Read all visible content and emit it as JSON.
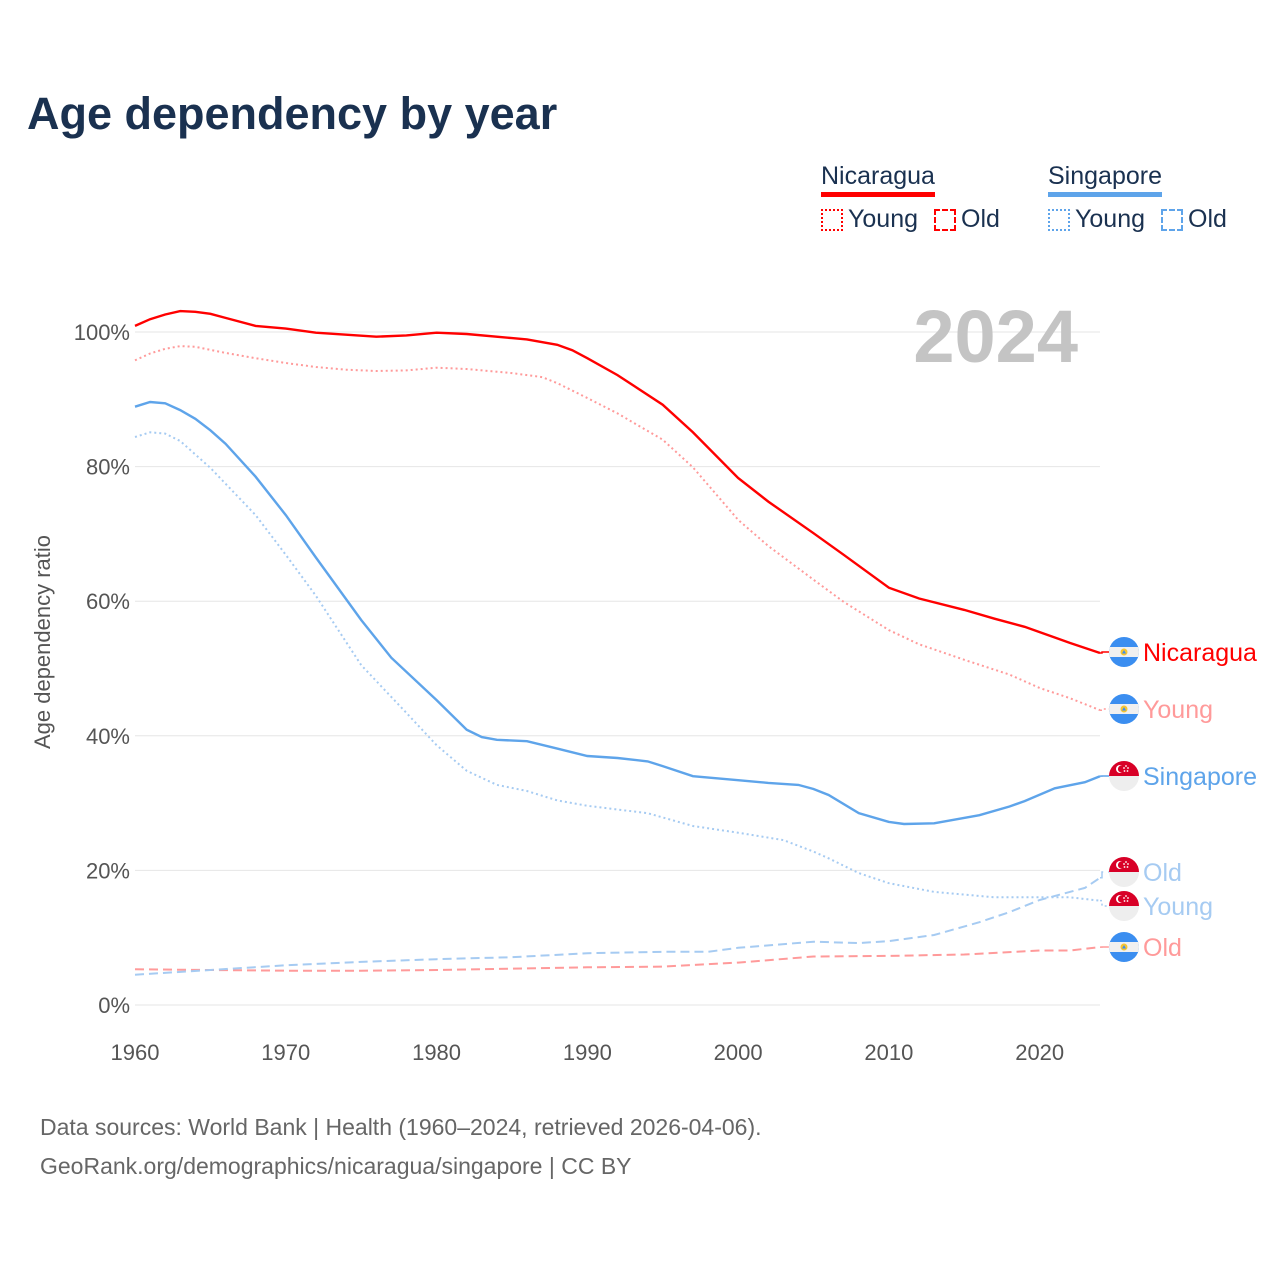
{
  "title": "Age dependency by year",
  "legend": {
    "countries": [
      {
        "name": "Nicaragua",
        "color": "#ff0000",
        "light": "#ff9a9a"
      },
      {
        "name": "Singapore",
        "color": "#5ea4ea",
        "light": "#a6cbf2"
      }
    ],
    "young_label": "Young",
    "old_label": "Old"
  },
  "source_line1": "Data sources: World Bank | Health (1960–2024, retrieved 2026-04-06).",
  "source_line2": "GeoRank.org/demographics/nicaragua/singapore | CC BY",
  "chart_data": {
    "type": "line",
    "title": "Age dependency by year",
    "year_watermark": "2024",
    "xlabel": "",
    "ylabel": "Age dependency ratio",
    "xlim": [
      1960,
      2024
    ],
    "ylim": [
      0,
      100
    ],
    "x_ticks": [
      "1960",
      "1970",
      "1980",
      "1990",
      "2000",
      "2010",
      "2020"
    ],
    "y_ticks": [
      "0%",
      "20%",
      "40%",
      "60%",
      "80%",
      "100%"
    ],
    "grid": true,
    "series": [
      {
        "name": "Nicaragua",
        "end_label": "Nicaragua",
        "style": "solid",
        "color": "#ff0000",
        "points": [
          [
            1960,
            100.9
          ],
          [
            1961,
            101.9
          ],
          [
            1962,
            102.6
          ],
          [
            1963,
            103.1
          ],
          [
            1964,
            103.0
          ],
          [
            1965,
            102.7
          ],
          [
            1966,
            102.1
          ],
          [
            1968,
            100.9
          ],
          [
            1970,
            100.5
          ],
          [
            1972,
            99.9
          ],
          [
            1974,
            99.6
          ],
          [
            1976,
            99.3
          ],
          [
            1978,
            99.5
          ],
          [
            1980,
            99.9
          ],
          [
            1982,
            99.7
          ],
          [
            1985,
            99.1
          ],
          [
            1986,
            98.9
          ],
          [
            1988,
            98.1
          ],
          [
            1989,
            97.3
          ],
          [
            1990,
            96.1
          ],
          [
            1992,
            93.6
          ],
          [
            1995,
            89.2
          ],
          [
            1997,
            85.1
          ],
          [
            2000,
            78.3
          ],
          [
            2002,
            74.8
          ],
          [
            2005,
            70.1
          ],
          [
            2007,
            66.9
          ],
          [
            2010,
            62.0
          ],
          [
            2012,
            60.4
          ],
          [
            2015,
            58.7
          ],
          [
            2017,
            57.4
          ],
          [
            2019,
            56.2
          ],
          [
            2021,
            54.6
          ],
          [
            2022,
            53.8
          ],
          [
            2024,
            52.3
          ]
        ]
      },
      {
        "name": "Nicaragua Young",
        "end_label": "Young",
        "style": "dotted",
        "color": "#ff9a9a",
        "points": [
          [
            1960,
            95.8
          ],
          [
            1961,
            96.8
          ],
          [
            1962,
            97.5
          ],
          [
            1963,
            97.9
          ],
          [
            1964,
            97.8
          ],
          [
            1966,
            96.9
          ],
          [
            1968,
            96.1
          ],
          [
            1970,
            95.4
          ],
          [
            1972,
            94.8
          ],
          [
            1974,
            94.4
          ],
          [
            1976,
            94.2
          ],
          [
            1978,
            94.3
          ],
          [
            1980,
            94.7
          ],
          [
            1982,
            94.5
          ],
          [
            1985,
            93.9
          ],
          [
            1987,
            93.3
          ],
          [
            1988,
            92.4
          ],
          [
            1990,
            90.2
          ],
          [
            1992,
            87.9
          ],
          [
            1995,
            84.0
          ],
          [
            1997,
            79.9
          ],
          [
            2000,
            72.1
          ],
          [
            2002,
            68.2
          ],
          [
            2005,
            63.2
          ],
          [
            2007,
            59.9
          ],
          [
            2010,
            55.7
          ],
          [
            2012,
            53.6
          ],
          [
            2015,
            51.3
          ],
          [
            2018,
            49.1
          ],
          [
            2020,
            47.1
          ],
          [
            2022,
            45.6
          ],
          [
            2024,
            43.8
          ]
        ]
      },
      {
        "name": "Nicaragua Old",
        "end_label": "Old",
        "style": "dashed",
        "color": "#ff9a9a",
        "points": [
          [
            1960,
            5.3
          ],
          [
            1965,
            5.2
          ],
          [
            1970,
            5.1
          ],
          [
            1975,
            5.1
          ],
          [
            1980,
            5.2
          ],
          [
            1985,
            5.4
          ],
          [
            1990,
            5.6
          ],
          [
            1995,
            5.7
          ],
          [
            2000,
            6.3
          ],
          [
            2005,
            7.2
          ],
          [
            2010,
            7.3
          ],
          [
            2015,
            7.5
          ],
          [
            2020,
            8.1
          ],
          [
            2022,
            8.1
          ],
          [
            2024,
            8.6
          ]
        ]
      },
      {
        "name": "Singapore",
        "end_label": "Singapore",
        "style": "solid",
        "color": "#5ea4ea",
        "points": [
          [
            1960,
            88.9
          ],
          [
            1961,
            89.6
          ],
          [
            1962,
            89.4
          ],
          [
            1963,
            88.4
          ],
          [
            1964,
            87.1
          ],
          [
            1965,
            85.4
          ],
          [
            1966,
            83.4
          ],
          [
            1968,
            78.5
          ],
          [
            1970,
            72.8
          ],
          [
            1972,
            66.5
          ],
          [
            1975,
            57.2
          ],
          [
            1977,
            51.6
          ],
          [
            1980,
            45.3
          ],
          [
            1982,
            40.9
          ],
          [
            1983,
            39.8
          ],
          [
            1984,
            39.4
          ],
          [
            1986,
            39.2
          ],
          [
            1988,
            38.1
          ],
          [
            1990,
            37.0
          ],
          [
            1992,
            36.7
          ],
          [
            1994,
            36.2
          ],
          [
            1995,
            35.5
          ],
          [
            1997,
            34.0
          ],
          [
            2000,
            33.4
          ],
          [
            2002,
            33.0
          ],
          [
            2004,
            32.7
          ],
          [
            2005,
            32.1
          ],
          [
            2006,
            31.2
          ],
          [
            2008,
            28.5
          ],
          [
            2010,
            27.2
          ],
          [
            2011,
            26.9
          ],
          [
            2013,
            27.0
          ],
          [
            2016,
            28.2
          ],
          [
            2018,
            29.5
          ],
          [
            2019,
            30.3
          ],
          [
            2021,
            32.2
          ],
          [
            2023,
            33.1
          ],
          [
            2024,
            34.0
          ]
        ]
      },
      {
        "name": "Singapore Old",
        "end_label": "Old",
        "style": "dashed",
        "color": "#a6cbf2",
        "points": [
          [
            1960,
            4.5
          ],
          [
            1965,
            5.2
          ],
          [
            1970,
            5.9
          ],
          [
            1975,
            6.4
          ],
          [
            1980,
            6.8
          ],
          [
            1985,
            7.1
          ],
          [
            1990,
            7.7
          ],
          [
            1995,
            7.9
          ],
          [
            1998,
            7.9
          ],
          [
            2000,
            8.5
          ],
          [
            2005,
            9.4
          ],
          [
            2008,
            9.2
          ],
          [
            2010,
            9.5
          ],
          [
            2013,
            10.4
          ],
          [
            2016,
            12.3
          ],
          [
            2018,
            13.8
          ],
          [
            2020,
            15.6
          ],
          [
            2023,
            17.4
          ],
          [
            2024,
            18.9
          ]
        ]
      },
      {
        "name": "Singapore Young",
        "end_label": "Young",
        "style": "dotted",
        "color": "#a6cbf2",
        "points": [
          [
            1960,
            84.4
          ],
          [
            1961,
            85.1
          ],
          [
            1962,
            84.9
          ],
          [
            1963,
            83.8
          ],
          [
            1965,
            79.8
          ],
          [
            1968,
            72.8
          ],
          [
            1970,
            66.9
          ],
          [
            1972,
            60.8
          ],
          [
            1975,
            50.5
          ],
          [
            1978,
            43.4
          ],
          [
            1980,
            38.6
          ],
          [
            1982,
            34.8
          ],
          [
            1984,
            32.7
          ],
          [
            1986,
            31.8
          ],
          [
            1988,
            30.4
          ],
          [
            1990,
            29.6
          ],
          [
            1994,
            28.5
          ],
          [
            1997,
            26.6
          ],
          [
            2000,
            25.6
          ],
          [
            2003,
            24.5
          ],
          [
            2005,
            22.8
          ],
          [
            2006,
            21.8
          ],
          [
            2008,
            19.6
          ],
          [
            2010,
            18.1
          ],
          [
            2013,
            16.8
          ],
          [
            2017,
            16.0
          ],
          [
            2020,
            16.0
          ],
          [
            2022,
            16.0
          ],
          [
            2024,
            15.5
          ]
        ]
      }
    ]
  }
}
